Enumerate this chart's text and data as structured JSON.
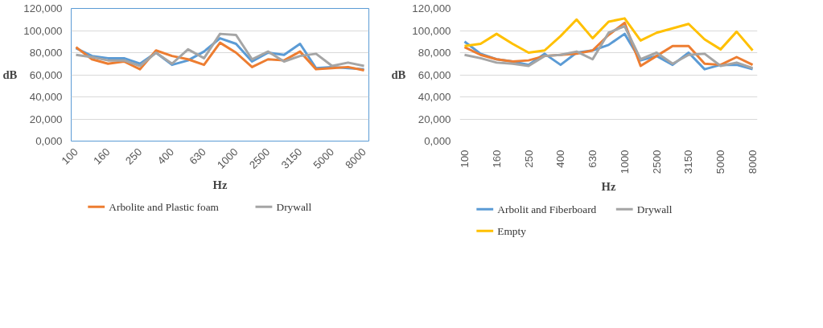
{
  "chart_data": [
    {
      "type": "line",
      "ylabel": "dB",
      "xlabel": "Hz",
      "categories": [
        "100",
        null,
        "160",
        null,
        "250",
        null,
        "400",
        null,
        "630",
        null,
        "1000",
        null,
        "2500",
        null,
        "3150",
        null,
        "5000",
        null,
        "8000"
      ],
      "ylim": [
        0,
        120
      ],
      "yticks": [
        {
          "value": 0,
          "label": "0,000"
        },
        {
          "value": 20,
          "label": "20,000"
        },
        {
          "value": 40,
          "label": "40,000"
        },
        {
          "value": 60,
          "label": "60,000"
        },
        {
          "value": 80,
          "label": "80,000"
        },
        {
          "value": 100,
          "label": "100,000"
        },
        {
          "value": 120,
          "label": "120,000"
        }
      ],
      "grid": "y",
      "legend": "bottom",
      "series": [
        {
          "color": "#5b9bd5",
          "values": [
            84,
            77,
            75,
            75,
            70,
            80,
            69,
            73,
            81,
            93,
            88,
            72,
            80,
            78,
            88,
            66,
            67,
            66,
            65
          ]
        },
        {
          "name": "Arbolite and Plastic foam",
          "color": "#ed7d31",
          "values": [
            85,
            74,
            70,
            72,
            65,
            82,
            77,
            74,
            69,
            89,
            80,
            67,
            74,
            73,
            81,
            65,
            66,
            67,
            64
          ]
        },
        {
          "name": "Drywall",
          "color": "#a5a5a5",
          "values": [
            78,
            76,
            73,
            73,
            68,
            80,
            70,
            83,
            75,
            97,
            96,
            74,
            81,
            72,
            77,
            79,
            68,
            71,
            68
          ]
        }
      ]
    },
    {
      "type": "line",
      "ylabel": "dB",
      "xlabel": "Hz",
      "categories": [
        "100",
        null,
        "160",
        null,
        "250",
        null,
        "400",
        null,
        "630",
        null,
        "1000",
        null,
        "2500",
        null,
        "3150",
        null,
        "5000",
        null,
        "8000"
      ],
      "ylim": [
        0,
        120
      ],
      "yticks": [
        {
          "value": 0,
          "label": "0,000"
        },
        {
          "value": 20,
          "label": "20,000"
        },
        {
          "value": 40,
          "label": "40,000"
        },
        {
          "value": 60,
          "label": "60,000"
        },
        {
          "value": 80,
          "label": "80,000"
        },
        {
          "value": 100,
          "label": "100,000"
        },
        {
          "value": 120,
          "label": "120,000"
        }
      ],
      "grid": "y",
      "legend": "bottom",
      "series": [
        {
          "name": "Arbolit and Fiberboard",
          "color": "#5b9bd5",
          "values": [
            90,
            79,
            74,
            72,
            69,
            79,
            69,
            80,
            82,
            87,
            97,
            73,
            77,
            69,
            80,
            65,
            69,
            69,
            65
          ]
        },
        {
          "color": "#ed7d31",
          "values": [
            85,
            78,
            74,
            72,
            73,
            77,
            78,
            79,
            82,
            96,
            107,
            68,
            77,
            86,
            86,
            70,
            69,
            76,
            69
          ]
        },
        {
          "name": "Drywall",
          "color": "#a5a5a5",
          "values": [
            78,
            75,
            71,
            70,
            68,
            77,
            78,
            81,
            74,
            98,
            104,
            74,
            80,
            70,
            78,
            79,
            68,
            71,
            66
          ]
        },
        {
          "name": "Empty",
          "color": "#ffc000",
          "values": [
            86,
            88,
            97,
            88,
            80,
            82,
            95,
            110,
            93,
            108,
            111,
            91,
            98,
            102,
            106,
            92,
            83,
            99,
            82
          ]
        }
      ]
    }
  ]
}
